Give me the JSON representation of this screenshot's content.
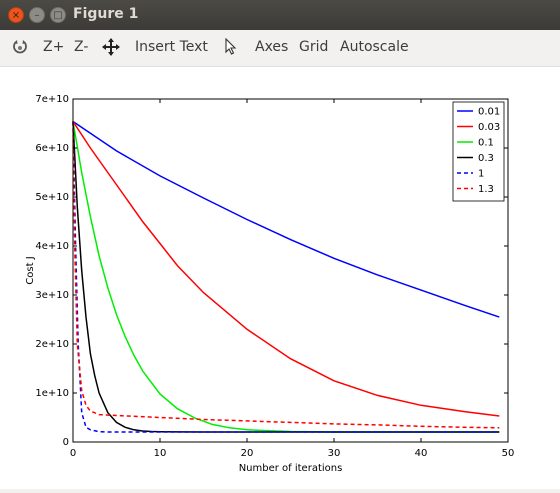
{
  "window": {
    "title": "Figure 1",
    "close_glyph": "×",
    "minimize_glyph": "–",
    "maximize_glyph": "□"
  },
  "toolbar": {
    "items": [
      {
        "label": "",
        "icon": "rotate-icon"
      },
      {
        "label": "Z+"
      },
      {
        "label": "Z-"
      },
      {
        "label": "",
        "icon": "pan-icon"
      },
      {
        "label": "Insert Text"
      },
      {
        "label": "",
        "icon": "select-pointer-icon"
      },
      {
        "label": "Axes"
      },
      {
        "label": "Grid"
      },
      {
        "label": "Autoscale"
      }
    ]
  },
  "chart_data": {
    "type": "line",
    "title": "",
    "xlabel": "Number of iterations",
    "ylabel": "Cost J",
    "xlim": [
      0,
      50
    ],
    "ylim": [
      0,
      70000000000
    ],
    "xticks": [
      0,
      10,
      20,
      30,
      40,
      50
    ],
    "yticks": [
      0,
      10000000000,
      20000000000,
      30000000000,
      40000000000,
      50000000000,
      60000000000,
      70000000000
    ],
    "xtick_labels": [
      "0",
      "10",
      "20",
      "30",
      "40",
      "50"
    ],
    "ytick_labels": [
      "0",
      "1e+10",
      "2e+10",
      "3e+10",
      "4e+10",
      "5e+10",
      "6e+10",
      "7e+10"
    ],
    "legend_position": "top-right",
    "grid": false,
    "series": [
      {
        "name": "0.01",
        "color": "#0000ff",
        "dash": "solid",
        "x": [
          0,
          5,
          10,
          15,
          20,
          25,
          30,
          35,
          40,
          45,
          49
        ],
        "y": [
          65400000000,
          59400000000,
          54300000000,
          49800000000,
          45400000000,
          41300000000,
          37500000000,
          34100000000,
          31000000000,
          27900000000,
          25500000000
        ]
      },
      {
        "name": "0.03",
        "color": "#ff0000",
        "dash": "solid",
        "x": [
          0,
          2,
          4,
          6,
          8,
          10,
          12,
          15,
          18,
          20,
          25,
          30,
          35,
          40,
          45,
          49
        ],
        "y": [
          65400000000,
          60000000000,
          55000000000,
          50000000000,
          45000000000,
          40500000000,
          36000000000,
          30500000000,
          26000000000,
          23000000000,
          17000000000,
          12500000000,
          9500000000,
          7500000000,
          6200000000,
          5300000000
        ]
      },
      {
        "name": "0.1",
        "color": "#00ee00",
        "dash": "solid",
        "x": [
          0,
          1,
          2,
          3,
          4,
          5,
          6,
          7,
          8,
          10,
          12,
          14,
          16,
          18,
          20,
          25,
          30,
          35,
          40,
          45,
          49
        ],
        "y": [
          65400000000,
          55000000000,
          46000000000,
          38000000000,
          31500000000,
          26000000000,
          21500000000,
          17700000000,
          14500000000,
          9800000000,
          6800000000,
          4900000000,
          3600000000,
          2900000000,
          2500000000,
          2150000000,
          2050000000,
          2040000000,
          2040000000,
          2040000000,
          2040000000
        ]
      },
      {
        "name": "0.3",
        "color": "#000000",
        "dash": "solid",
        "x": [
          0,
          0.5,
          1,
          1.5,
          2,
          2.5,
          3,
          4,
          5,
          6,
          7,
          8,
          9,
          10,
          12,
          15,
          20,
          30,
          40,
          49
        ],
        "y": [
          65400000000,
          48000000000,
          35000000000,
          25500000000,
          18000000000,
          13500000000,
          10000000000,
          6000000000,
          4000000000,
          3000000000,
          2500000000,
          2250000000,
          2150000000,
          2100000000,
          2060000000,
          2040000000,
          2040000000,
          2040000000,
          2040000000,
          2040000000
        ]
      },
      {
        "name": "1",
        "color": "#0000ff",
        "dash": "dashed",
        "x": [
          0,
          0.3,
          0.6,
          1,
          1.5,
          2,
          3,
          4,
          6,
          10,
          20,
          30,
          40,
          49
        ],
        "y": [
          65400000000,
          40000000000,
          20000000000,
          6000000000,
          3000000000,
          2500000000,
          2100000000,
          2050000000,
          2040000000,
          2040000000,
          2040000000,
          2040000000,
          2040000000,
          2040000000
        ]
      },
      {
        "name": "1.3",
        "color": "#ff0000",
        "dash": "dashed",
        "x": [
          0,
          0.2,
          0.5,
          1,
          1.5,
          2,
          3,
          5,
          10,
          15,
          20,
          25,
          30,
          35,
          40,
          45,
          49
        ],
        "y": [
          65400000000,
          40000000000,
          20000000000,
          10500000000,
          7500000000,
          6300000000,
          5600000000,
          5400000000,
          5000000000,
          4600000000,
          4300000000,
          4000000000,
          3700000000,
          3500000000,
          3200000000,
          3000000000,
          2900000000
        ]
      }
    ]
  }
}
